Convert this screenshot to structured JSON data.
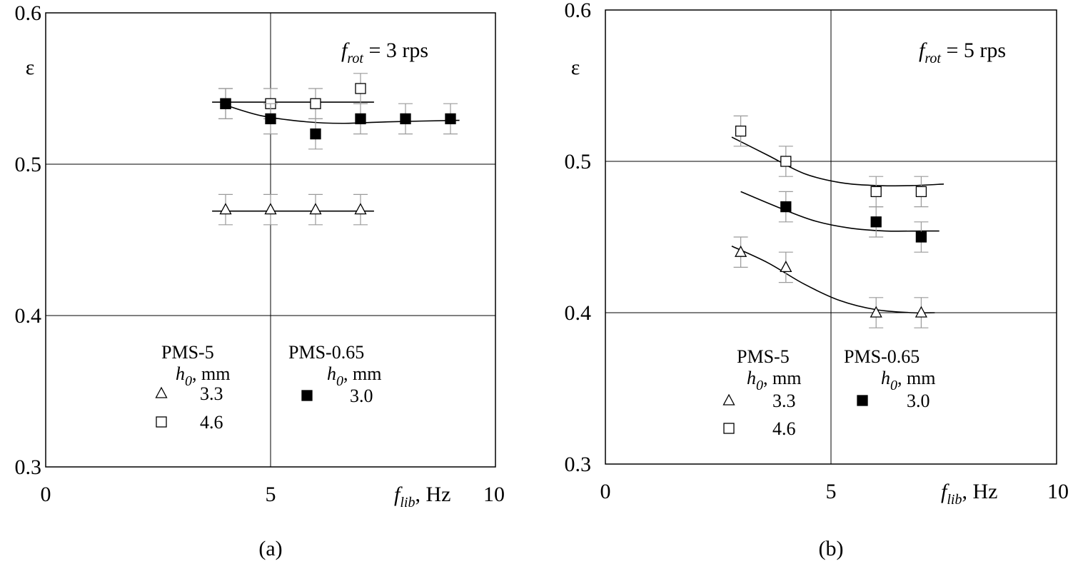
{
  "chart_data": [
    {
      "type": "scatter",
      "panel_label": "(a)",
      "annotation": {
        "var": "f",
        "sub": "rot",
        "text": " = 3 rps"
      },
      "ylabel": "ε",
      "xlabel": {
        "var": "f",
        "sub": "lib",
        "unit": ", Hz"
      },
      "xlim": [
        0,
        10
      ],
      "ylim": [
        0.3,
        0.6
      ],
      "xticks": [
        "0",
        "5",
        "10"
      ],
      "yticks": [
        "0.3",
        "0.4",
        "0.5",
        "0.6"
      ],
      "grid": "major lines at x=5 and y=0.4, 0.5",
      "error_bar": 0.01,
      "legend": {
        "group1": {
          "title": "PMS-5",
          "sub_title_var": "h",
          "sub_title_sub": "0",
          "sub_title_unit": ", mm"
        },
        "group2": {
          "title": "PMS-0.65",
          "sub_title_var": "h",
          "sub_title_sub": "0",
          "sub_title_unit": ", mm"
        },
        "entries": [
          {
            "marker": "triangle-open",
            "label": "3.3",
            "group": 1
          },
          {
            "marker": "square-open",
            "label": "4.6",
            "group": 1
          },
          {
            "marker": "square-filled",
            "label": "3.0",
            "group": 2
          }
        ]
      },
      "series": [
        {
          "name": "PMS-5 h0 = 3.3 mm",
          "marker": "triangle-open",
          "x": [
            4,
            5,
            6,
            7
          ],
          "y": [
            0.47,
            0.47,
            0.47,
            0.47
          ],
          "fit": {
            "x": [
              3.7,
              7.3
            ],
            "y": [
              0.469,
              0.469
            ],
            "curve": false
          }
        },
        {
          "name": "PMS-5 h0 = 4.6 mm",
          "marker": "square-open",
          "x": [
            4,
            5,
            6,
            7
          ],
          "y": [
            0.54,
            0.54,
            0.54,
            0.55
          ],
          "fit": {
            "x": [
              3.7,
              7.3
            ],
            "y": [
              0.541,
              0.541
            ],
            "curve": false
          }
        },
        {
          "name": "PMS-0.65 h0 = 3.0 mm",
          "marker": "square-filled",
          "x": [
            4,
            5,
            6,
            7,
            8,
            9
          ],
          "y": [
            0.54,
            0.53,
            0.52,
            0.53,
            0.53,
            0.53
          ],
          "fit": {
            "x": [
              4.0,
              4.8,
              5.8,
              6.6,
              7.6,
              9.2
            ],
            "y": [
              0.539,
              0.532,
              0.528,
              0.527,
              0.528,
              0.529
            ],
            "curve": true
          }
        }
      ]
    },
    {
      "type": "scatter",
      "panel_label": "(b)",
      "annotation": {
        "var": "f",
        "sub": "rot",
        "text": " = 5 rps"
      },
      "ylabel": "ε",
      "xlabel": {
        "var": "f",
        "sub": "lib",
        "unit": ", Hz"
      },
      "xlim": [
        0,
        10
      ],
      "ylim": [
        0.3,
        0.6
      ],
      "xticks": [
        "0",
        "5",
        "10"
      ],
      "yticks": [
        "0.3",
        "0.4",
        "0.5",
        "0.6"
      ],
      "grid": "major lines at x=5 and y=0.4, 0.5",
      "error_bar": 0.01,
      "legend": {
        "group1": {
          "title": "PMS-5",
          "sub_title_var": "h",
          "sub_title_sub": "0",
          "sub_title_unit": ", mm"
        },
        "group2": {
          "title": "PMS-0.65",
          "sub_title_var": "h",
          "sub_title_sub": "0",
          "sub_title_unit": ", mm"
        },
        "entries": [
          {
            "marker": "triangle-open",
            "label": "3.3",
            "group": 1
          },
          {
            "marker": "square-open",
            "label": "4.6",
            "group": 1
          },
          {
            "marker": "square-filled",
            "label": "3.0",
            "group": 2
          }
        ]
      },
      "series": [
        {
          "name": "PMS-5 h0 = 3.3 mm",
          "marker": "triangle-open",
          "x": [
            3,
            4,
            6,
            7
          ],
          "y": [
            0.44,
            0.43,
            0.4,
            0.4
          ],
          "fit": {
            "x": [
              2.8,
              3.6,
              4.4,
              5.2,
              6.0,
              6.8,
              7.3
            ],
            "y": [
              0.444,
              0.433,
              0.419,
              0.408,
              0.402,
              0.4,
              0.4
            ],
            "curve": true
          }
        },
        {
          "name": "PMS-5 h0 = 4.6 mm",
          "marker": "square-open",
          "x": [
            3,
            4,
            6,
            7
          ],
          "y": [
            0.52,
            0.5,
            0.48,
            0.48
          ],
          "fit": {
            "x": [
              2.8,
              3.6,
              4.4,
              5.2,
              6.0,
              6.8,
              7.5
            ],
            "y": [
              0.516,
              0.504,
              0.492,
              0.486,
              0.484,
              0.484,
              0.485
            ],
            "curve": true
          }
        },
        {
          "name": "PMS-0.65 h0 = 3.0 mm",
          "marker": "square-filled",
          "x": [
            4,
            6,
            7
          ],
          "y": [
            0.47,
            0.46,
            0.45
          ],
          "fit": {
            "x": [
              3.0,
              3.8,
              4.6,
              5.4,
              6.2,
              7.0,
              7.4
            ],
            "y": [
              0.48,
              0.47,
              0.461,
              0.456,
              0.454,
              0.454,
              0.454
            ],
            "curve": true
          }
        }
      ]
    }
  ]
}
